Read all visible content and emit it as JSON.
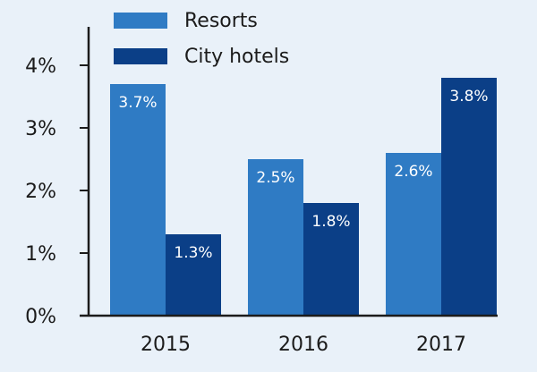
{
  "chart_data": {
    "type": "bar",
    "categories": [
      "2015",
      "2016",
      "2017"
    ],
    "series": [
      {
        "name": "Resorts",
        "values": [
          3.7,
          2.5,
          2.6
        ],
        "labels": [
          "3.7%",
          "2.5%",
          "2.6%"
        ]
      },
      {
        "name": "City hotels",
        "values": [
          1.3,
          1.8,
          3.8
        ],
        "labels": [
          "1.3%",
          "1.8%",
          "3.8%"
        ]
      }
    ],
    "y_ticks": [
      0,
      1,
      2,
      3,
      4
    ],
    "y_tick_labels": [
      "0%",
      "1%",
      "2%",
      "3%",
      "4%"
    ],
    "ylim": [
      0,
      4.0
    ],
    "grid": false,
    "legend_position": "top-left",
    "title": "",
    "xlabel": "",
    "ylabel": ""
  },
  "colors": {
    "background": "#e9f1f9",
    "axis": "#1b1b1b",
    "series": [
      "#2f7bc4",
      "#0b3f87"
    ]
  }
}
